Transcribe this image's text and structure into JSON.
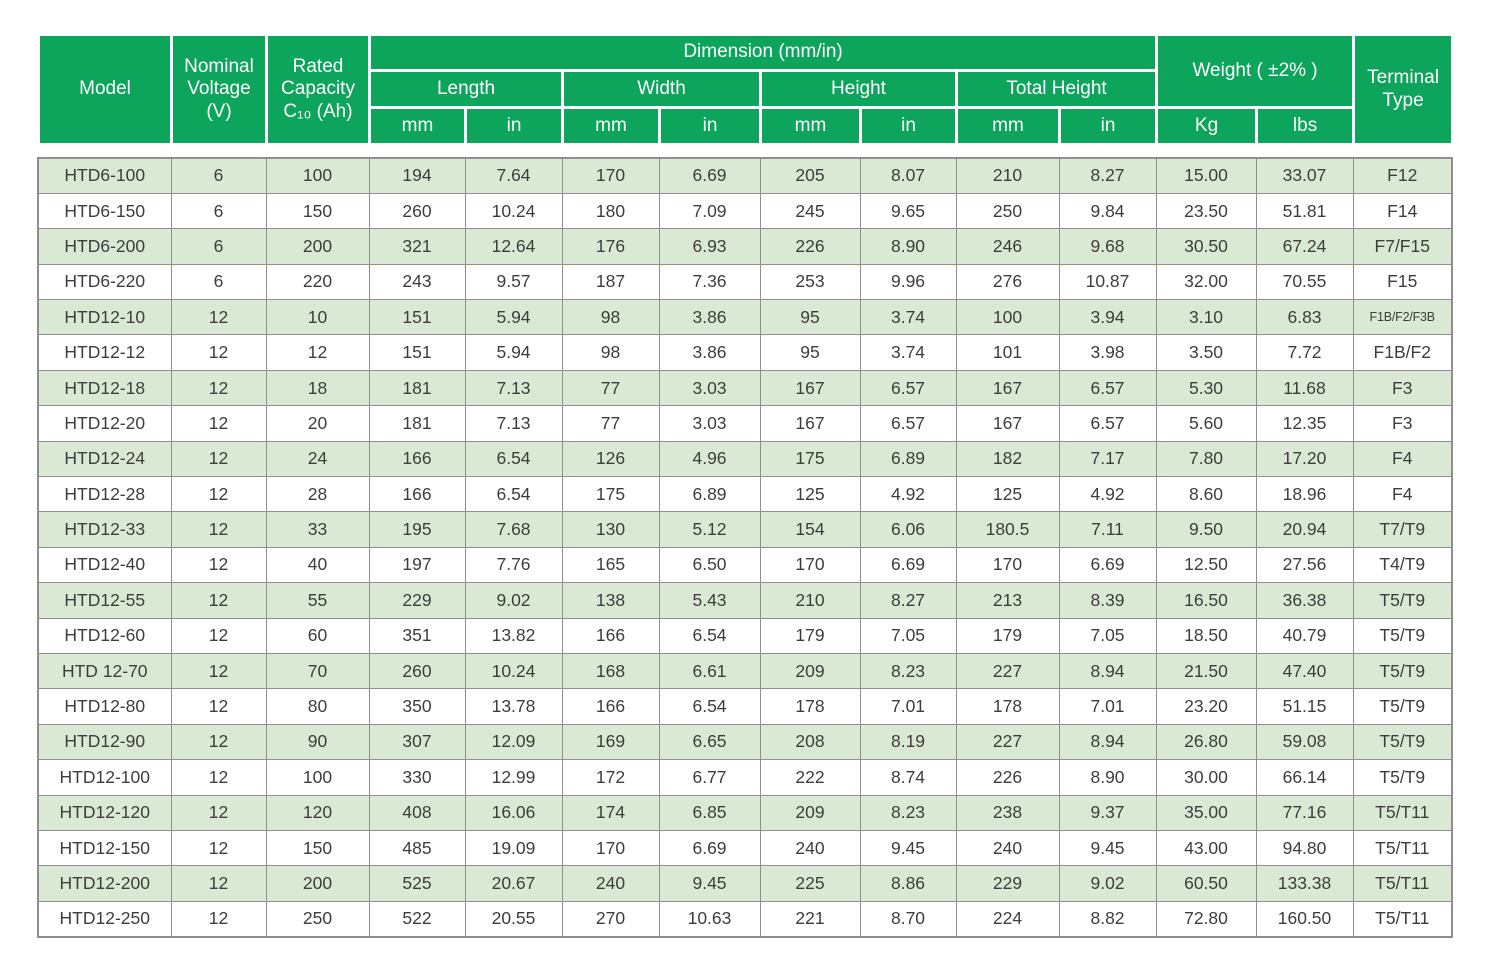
{
  "table": {
    "header": {
      "model": "Model",
      "nominal_voltage": "Nominal Voltage (V)",
      "rated_capacity": "Rated Capacity C₁₀ (Ah)",
      "dimension": "Dimension (mm/in)",
      "length": "Length",
      "width": "Width",
      "height": "Height",
      "total_height": "Total Height",
      "weight": "Weight ( ±2% )",
      "terminal_type": "Terminal Type",
      "unit_mm": "mm",
      "unit_in": "in",
      "unit_kg": "Kg",
      "unit_lbs": "lbs"
    },
    "rows": [
      [
        "HTD6-100",
        "6",
        "100",
        "194",
        "7.64",
        "170",
        "6.69",
        "205",
        "8.07",
        "210",
        "8.27",
        "15.00",
        "33.07",
        "F12"
      ],
      [
        "HTD6-150",
        "6",
        "150",
        "260",
        "10.24",
        "180",
        "7.09",
        "245",
        "9.65",
        "250",
        "9.84",
        "23.50",
        "51.81",
        "F14"
      ],
      [
        "HTD6-200",
        "6",
        "200",
        "321",
        "12.64",
        "176",
        "6.93",
        "226",
        "8.90",
        "246",
        "9.68",
        "30.50",
        "67.24",
        "F7/F15"
      ],
      [
        "HTD6-220",
        "6",
        "220",
        "243",
        "9.57",
        "187",
        "7.36",
        "253",
        "9.96",
        "276",
        "10.87",
        "32.00",
        "70.55",
        "F15"
      ],
      [
        "HTD12-10",
        "12",
        "10",
        "151",
        "5.94",
        "98",
        "3.86",
        "95",
        "3.74",
        "100",
        "3.94",
        "3.10",
        "6.83",
        "F1B/F2/F3B"
      ],
      [
        "HTD12-12",
        "12",
        "12",
        "151",
        "5.94",
        "98",
        "3.86",
        "95",
        "3.74",
        "101",
        "3.98",
        "3.50",
        "7.72",
        "F1B/F2"
      ],
      [
        "HTD12-18",
        "12",
        "18",
        "181",
        "7.13",
        "77",
        "3.03",
        "167",
        "6.57",
        "167",
        "6.57",
        "5.30",
        "11.68",
        "F3"
      ],
      [
        "HTD12-20",
        "12",
        "20",
        "181",
        "7.13",
        "77",
        "3.03",
        "167",
        "6.57",
        "167",
        "6.57",
        "5.60",
        "12.35",
        "F3"
      ],
      [
        "HTD12-24",
        "12",
        "24",
        "166",
        "6.54",
        "126",
        "4.96",
        "175",
        "6.89",
        "182",
        "7.17",
        "7.80",
        "17.20",
        "F4"
      ],
      [
        "HTD12-28",
        "12",
        "28",
        "166",
        "6.54",
        "175",
        "6.89",
        "125",
        "4.92",
        "125",
        "4.92",
        "8.60",
        "18.96",
        "F4"
      ],
      [
        "HTD12-33",
        "12",
        "33",
        "195",
        "7.68",
        "130",
        "5.12",
        "154",
        "6.06",
        "180.5",
        "7.11",
        "9.50",
        "20.94",
        "T7/T9"
      ],
      [
        "HTD12-40",
        "12",
        "40",
        "197",
        "7.76",
        "165",
        "6.50",
        "170",
        "6.69",
        "170",
        "6.69",
        "12.50",
        "27.56",
        "T4/T9"
      ],
      [
        "HTD12-55",
        "12",
        "55",
        "229",
        "9.02",
        "138",
        "5.43",
        "210",
        "8.27",
        "213",
        "8.39",
        "16.50",
        "36.38",
        "T5/T9"
      ],
      [
        "HTD12-60",
        "12",
        "60",
        "351",
        "13.82",
        "166",
        "6.54",
        "179",
        "7.05",
        "179",
        "7.05",
        "18.50",
        "40.79",
        "T5/T9"
      ],
      [
        "HTD 12-70",
        "12",
        "70",
        "260",
        "10.24",
        "168",
        "6.61",
        "209",
        "8.23",
        "227",
        "8.94",
        "21.50",
        "47.40",
        "T5/T9"
      ],
      [
        "HTD12-80",
        "12",
        "80",
        "350",
        "13.78",
        "166",
        "6.54",
        "178",
        "7.01",
        "178",
        "7.01",
        "23.20",
        "51.15",
        "T5/T9"
      ],
      [
        "HTD12-90",
        "12",
        "90",
        "307",
        "12.09",
        "169",
        "6.65",
        "208",
        "8.19",
        "227",
        "8.94",
        "26.80",
        "59.08",
        "T5/T9"
      ],
      [
        "HTD12-100",
        "12",
        "100",
        "330",
        "12.99",
        "172",
        "6.77",
        "222",
        "8.74",
        "226",
        "8.90",
        "30.00",
        "66.14",
        "T5/T9"
      ],
      [
        "HTD12-120",
        "12",
        "120",
        "408",
        "16.06",
        "174",
        "6.85",
        "209",
        "8.23",
        "238",
        "9.37",
        "35.00",
        "77.16",
        "T5/T11"
      ],
      [
        "HTD12-150",
        "12",
        "150",
        "485",
        "19.09",
        "170",
        "6.69",
        "240",
        "9.45",
        "240",
        "9.45",
        "43.00",
        "94.80",
        "T5/T11"
      ],
      [
        "HTD12-200",
        "12",
        "200",
        "525",
        "20.67",
        "240",
        "9.45",
        "225",
        "8.86",
        "229",
        "9.02",
        "60.50",
        "133.38",
        "T5/T11"
      ],
      [
        "HTD12-250",
        "12",
        "250",
        "522",
        "20.55",
        "270",
        "10.63",
        "221",
        "8.70",
        "224",
        "8.82",
        "72.80",
        "160.50",
        "T5/T11"
      ]
    ]
  },
  "colors": {
    "header_green": "#0da55c",
    "row_stripe_green": "#d9e9d3",
    "row_white": "#ffffff",
    "body_text": "#3d3d3d",
    "grid_line": "#8f8f8f"
  }
}
